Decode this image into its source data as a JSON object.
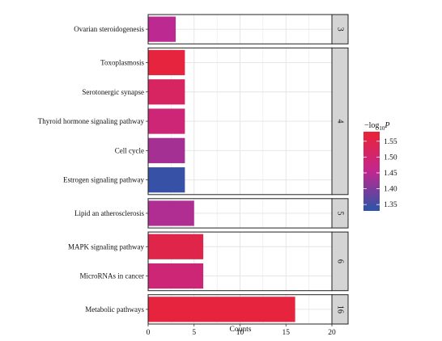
{
  "chart_data": {
    "type": "bar",
    "orientation": "horizontal",
    "facet_panels": [
      {
        "label": "3",
        "categories": [
          "Ovarian steroidogenesis"
        ],
        "values": [
          3
        ],
        "log10p": [
          1.45
        ]
      },
      {
        "label": "4",
        "categories": [
          "Toxoplasmosis",
          "Serotonergic synapse",
          "Thyroid hormone signaling pathway",
          "Cell cycle",
          "Estrogen signaling pathway"
        ],
        "values": [
          4,
          4,
          4,
          4,
          4
        ],
        "log10p": [
          1.57,
          1.52,
          1.49,
          1.43,
          1.34
        ]
      },
      {
        "label": "5",
        "categories": [
          "Lipid an atherosclerosis"
        ],
        "values": [
          5
        ],
        "log10p": [
          1.44
        ]
      },
      {
        "label": "6",
        "categories": [
          "MAPK signaling pathway",
          "MicroRNAs in cancer"
        ],
        "values": [
          6,
          6
        ],
        "log10p": [
          1.55,
          1.49
        ]
      },
      {
        "label": "16",
        "categories": [
          "Metabolic pathways"
        ],
        "values": [
          16
        ],
        "log10p": [
          1.57
        ]
      }
    ],
    "xlabel": "Counts",
    "xlim": [
      0,
      20
    ],
    "xticks": [
      "0",
      "5",
      "10",
      "15",
      "20"
    ],
    "grid": true,
    "legend": {
      "title_main": "−log",
      "title_sub": "10",
      "title_var": "P",
      "placement": "right",
      "range": [
        1.33,
        1.58
      ],
      "ticks": [
        "1.55",
        "1.50",
        "1.45",
        "1.40",
        "1.35"
      ],
      "tick_values": [
        1.55,
        1.5,
        1.45,
        1.4,
        1.35
      ],
      "low_color": "#2a55a8",
      "mid_color": "#c2278f",
      "high_color": "#ea2436"
    }
  }
}
